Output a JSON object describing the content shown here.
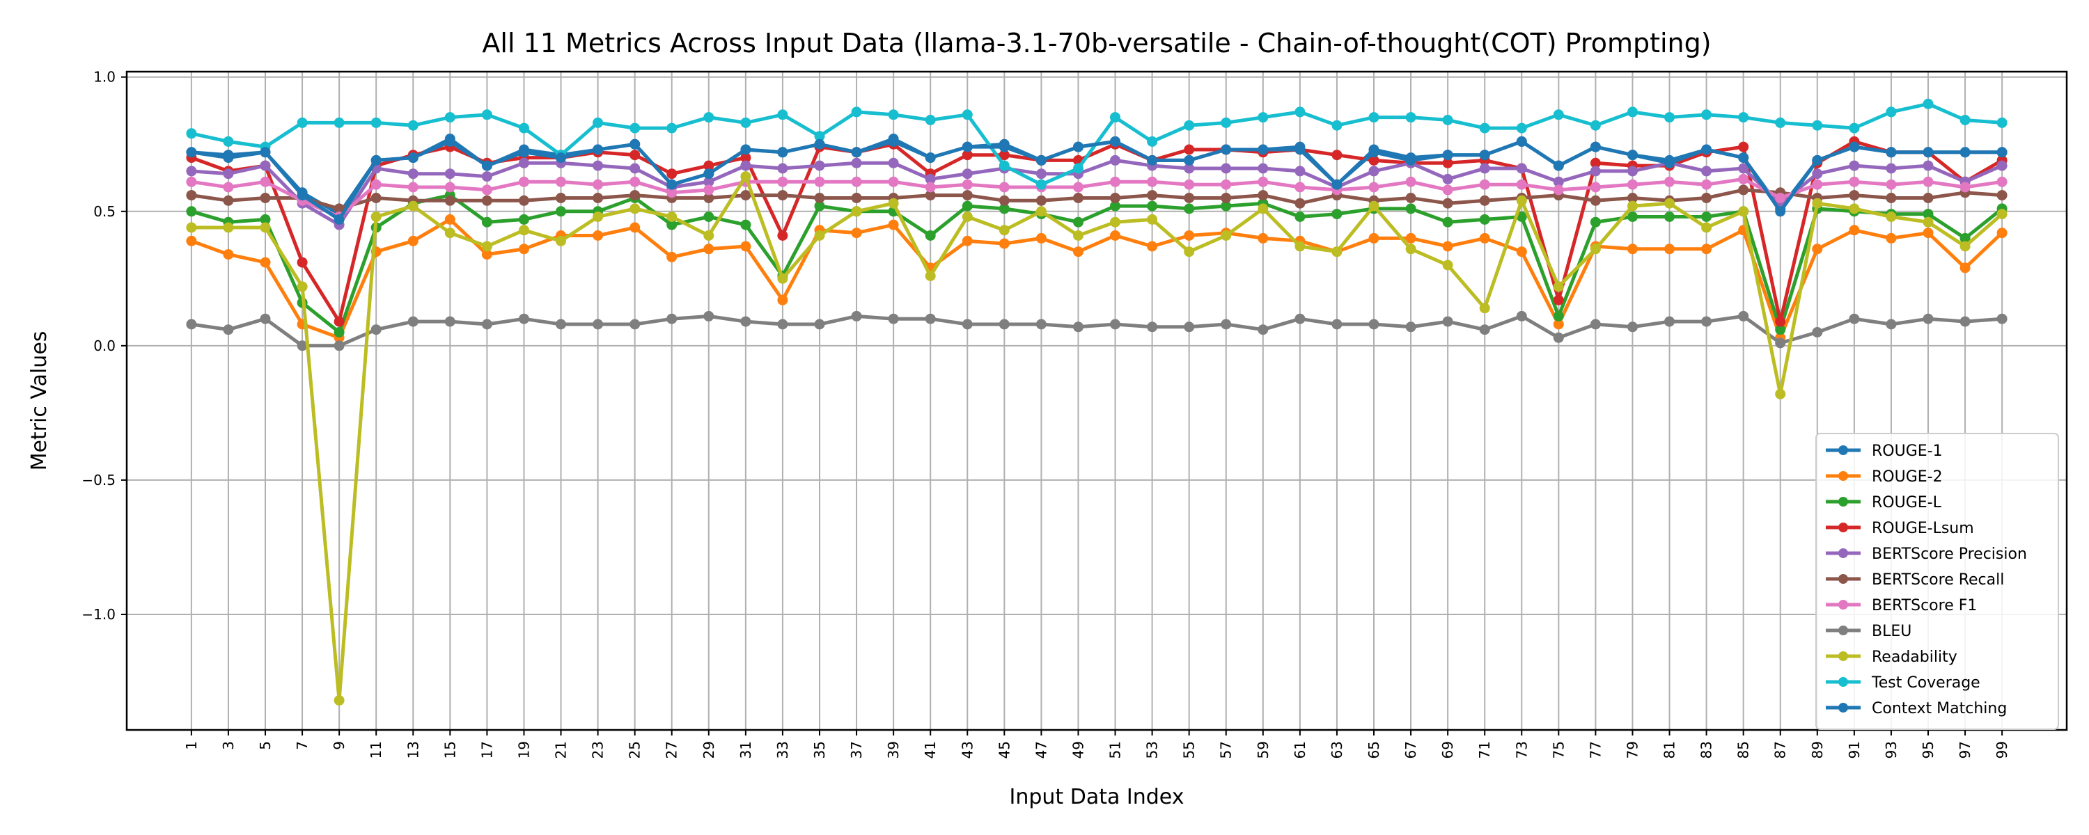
{
  "chart_data": {
    "type": "line",
    "title": "All 11 Metrics Across Input Data (llama-3.1-70b-versatile - Chain-of-thought(COT) Prompting)",
    "xlabel": "Input Data Index",
    "ylabel": "Metric Values",
    "ylim": [
      -1.43,
      1.02
    ],
    "yticks": [
      "1.0",
      "0.5",
      "0.0",
      "−0.5",
      "−1.0"
    ],
    "yticks_values": [
      1.0,
      0.5,
      0.0,
      -0.5,
      -1.0
    ],
    "grid": true,
    "legend_position": "lower right",
    "x": [
      1,
      3,
      5,
      7,
      9,
      11,
      13,
      15,
      17,
      19,
      21,
      23,
      25,
      27,
      29,
      31,
      33,
      35,
      37,
      39,
      41,
      43,
      45,
      47,
      49,
      51,
      53,
      55,
      57,
      59,
      61,
      63,
      65,
      67,
      69,
      71,
      73,
      75,
      77,
      79,
      81,
      83,
      85,
      87,
      89,
      91,
      93,
      95,
      97,
      99
    ],
    "series": [
      {
        "name": "ROUGE-1",
        "color": "#1f77b4",
        "values": [
          0.72,
          0.71,
          0.72,
          0.57,
          0.49,
          0.69,
          0.7,
          0.77,
          0.67,
          0.73,
          0.71,
          0.73,
          0.75,
          0.6,
          0.64,
          0.73,
          0.72,
          0.75,
          0.72,
          0.77,
          0.7,
          0.74,
          0.75,
          0.69,
          0.74,
          0.76,
          0.69,
          0.69,
          0.73,
          0.73,
          0.74,
          0.6,
          0.73,
          0.7,
          0.71,
          0.71,
          0.76,
          0.67,
          0.74,
          0.71,
          0.69,
          0.73,
          0.7,
          0.51,
          0.69,
          0.74,
          0.72,
          0.72,
          0.72,
          0.72
        ]
      },
      {
        "name": "ROUGE-2",
        "color": "#ff7f0e",
        "values": [
          0.39,
          0.34,
          0.31,
          0.08,
          0.03,
          0.35,
          0.39,
          0.47,
          0.34,
          0.36,
          0.41,
          0.41,
          0.44,
          0.33,
          0.36,
          0.37,
          0.17,
          0.43,
          0.42,
          0.45,
          0.29,
          0.39,
          0.38,
          0.4,
          0.35,
          0.41,
          0.37,
          0.41,
          0.42,
          0.4,
          0.39,
          0.35,
          0.4,
          0.4,
          0.37,
          0.4,
          0.35,
          0.08,
          0.37,
          0.36,
          0.36,
          0.36,
          0.43,
          0.03,
          0.36,
          0.43,
          0.4,
          0.42,
          0.29,
          0.42
        ]
      },
      {
        "name": "ROUGE-L",
        "color": "#2ca02c",
        "values": [
          0.5,
          0.46,
          0.47,
          0.16,
          0.05,
          0.44,
          0.53,
          0.56,
          0.46,
          0.47,
          0.5,
          0.5,
          0.55,
          0.45,
          0.48,
          0.45,
          0.26,
          0.52,
          0.5,
          0.5,
          0.41,
          0.52,
          0.51,
          0.49,
          0.46,
          0.52,
          0.52,
          0.51,
          0.52,
          0.53,
          0.48,
          0.49,
          0.51,
          0.51,
          0.46,
          0.47,
          0.48,
          0.11,
          0.46,
          0.48,
          0.48,
          0.48,
          0.5,
          0.06,
          0.51,
          0.5,
          0.49,
          0.49,
          0.4,
          0.51
        ]
      },
      {
        "name": "ROUGE-Lsum",
        "color": "#d62728",
        "values": [
          0.7,
          0.65,
          0.67,
          0.31,
          0.09,
          0.67,
          0.71,
          0.74,
          0.68,
          0.7,
          0.7,
          0.72,
          0.71,
          0.64,
          0.67,
          0.7,
          0.41,
          0.74,
          0.72,
          0.75,
          0.64,
          0.71,
          0.71,
          0.69,
          0.69,
          0.75,
          0.69,
          0.73,
          0.73,
          0.72,
          0.73,
          0.71,
          0.69,
          0.68,
          0.68,
          0.69,
          0.66,
          0.17,
          0.68,
          0.67,
          0.67,
          0.72,
          0.74,
          0.09,
          0.68,
          0.76,
          0.72,
          0.72,
          0.61,
          0.69
        ]
      },
      {
        "name": "BERTScore Precision",
        "color": "#9467bd",
        "values": [
          0.65,
          0.64,
          0.67,
          0.53,
          0.45,
          0.66,
          0.64,
          0.64,
          0.63,
          0.68,
          0.68,
          0.67,
          0.66,
          0.59,
          0.61,
          0.67,
          0.66,
          0.67,
          0.68,
          0.68,
          0.62,
          0.64,
          0.66,
          0.64,
          0.64,
          0.69,
          0.67,
          0.66,
          0.66,
          0.66,
          0.65,
          0.59,
          0.65,
          0.68,
          0.62,
          0.66,
          0.66,
          0.61,
          0.65,
          0.65,
          0.68,
          0.65,
          0.66,
          0.53,
          0.64,
          0.67,
          0.66,
          0.67,
          0.61,
          0.67
        ]
      },
      {
        "name": "BERTScore Recall",
        "color": "#8c564b",
        "values": [
          0.56,
          0.54,
          0.55,
          0.55,
          0.51,
          0.55,
          0.54,
          0.54,
          0.54,
          0.54,
          0.55,
          0.55,
          0.56,
          0.55,
          0.55,
          0.56,
          0.56,
          0.55,
          0.55,
          0.55,
          0.56,
          0.56,
          0.54,
          0.54,
          0.55,
          0.55,
          0.56,
          0.55,
          0.55,
          0.56,
          0.53,
          0.56,
          0.54,
          0.55,
          0.53,
          0.54,
          0.55,
          0.56,
          0.54,
          0.55,
          0.54,
          0.55,
          0.58,
          0.57,
          0.55,
          0.56,
          0.55,
          0.55,
          0.57,
          0.56
        ]
      },
      {
        "name": "BERTScore F1",
        "color": "#e377c2",
        "values": [
          0.61,
          0.59,
          0.61,
          0.54,
          0.48,
          0.6,
          0.59,
          0.59,
          0.58,
          0.61,
          0.61,
          0.6,
          0.61,
          0.57,
          0.58,
          0.61,
          0.61,
          0.61,
          0.61,
          0.61,
          0.59,
          0.6,
          0.59,
          0.59,
          0.59,
          0.61,
          0.61,
          0.6,
          0.6,
          0.61,
          0.59,
          0.58,
          0.59,
          0.61,
          0.58,
          0.6,
          0.6,
          0.58,
          0.59,
          0.6,
          0.61,
          0.6,
          0.62,
          0.55,
          0.6,
          0.61,
          0.6,
          0.61,
          0.59,
          0.61
        ]
      },
      {
        "name": "BLEU",
        "color": "#7f7f7f",
        "values": [
          0.08,
          0.06,
          0.1,
          0.0,
          0.0,
          0.06,
          0.09,
          0.09,
          0.08,
          0.1,
          0.08,
          0.08,
          0.08,
          0.1,
          0.11,
          0.09,
          0.08,
          0.08,
          0.11,
          0.1,
          0.1,
          0.08,
          0.08,
          0.08,
          0.07,
          0.08,
          0.07,
          0.07,
          0.08,
          0.06,
          0.1,
          0.08,
          0.08,
          0.07,
          0.09,
          0.06,
          0.11,
          0.03,
          0.08,
          0.07,
          0.09,
          0.09,
          0.11,
          0.01,
          0.05,
          0.1,
          0.08,
          0.1,
          0.09,
          0.1
        ]
      },
      {
        "name": "Readability",
        "color": "#bcbd22",
        "values": [
          0.44,
          0.44,
          0.44,
          0.22,
          -1.32,
          0.48,
          0.52,
          0.42,
          0.37,
          0.43,
          0.39,
          0.48,
          0.51,
          0.48,
          0.41,
          0.63,
          0.25,
          0.41,
          0.5,
          0.53,
          0.26,
          0.48,
          0.43,
          0.5,
          0.41,
          0.46,
          0.47,
          0.35,
          0.41,
          0.51,
          0.37,
          0.35,
          0.52,
          0.36,
          0.3,
          0.14,
          0.54,
          0.22,
          0.36,
          0.52,
          0.53,
          0.44,
          0.5,
          -0.18,
          0.53,
          0.51,
          0.48,
          0.46,
          0.37,
          0.49
        ]
      },
      {
        "name": "Test Coverage",
        "color": "#17becf",
        "values": [
          0.79,
          0.76,
          0.74,
          0.83,
          0.83,
          0.83,
          0.82,
          0.85,
          0.86,
          0.81,
          0.71,
          0.83,
          0.81,
          0.81,
          0.85,
          0.83,
          0.86,
          0.78,
          0.87,
          0.86,
          0.84,
          0.86,
          0.67,
          0.6,
          0.66,
          0.85,
          0.76,
          0.82,
          0.83,
          0.85,
          0.87,
          0.82,
          0.85,
          0.85,
          0.84,
          0.81,
          0.81,
          0.86,
          0.82,
          0.87,
          0.85,
          0.86,
          0.85,
          0.83,
          0.82,
          0.81,
          0.87,
          0.9,
          0.84,
          0.83
        ]
      },
      {
        "name": "Context Matching",
        "color": "#1f77b4",
        "values": [
          0.72,
          0.7,
          0.72,
          0.56,
          0.47,
          0.69,
          0.7,
          0.76,
          0.67,
          0.72,
          0.7,
          0.73,
          0.75,
          0.6,
          0.64,
          0.73,
          0.72,
          0.75,
          0.72,
          0.76,
          0.7,
          0.74,
          0.74,
          0.69,
          0.74,
          0.76,
          0.69,
          0.69,
          0.73,
          0.73,
          0.73,
          0.6,
          0.72,
          0.69,
          0.71,
          0.71,
          0.76,
          0.67,
          0.74,
          0.71,
          0.68,
          0.73,
          0.7,
          0.5,
          0.69,
          0.74,
          0.72,
          0.72,
          0.72,
          0.72
        ]
      }
    ]
  }
}
